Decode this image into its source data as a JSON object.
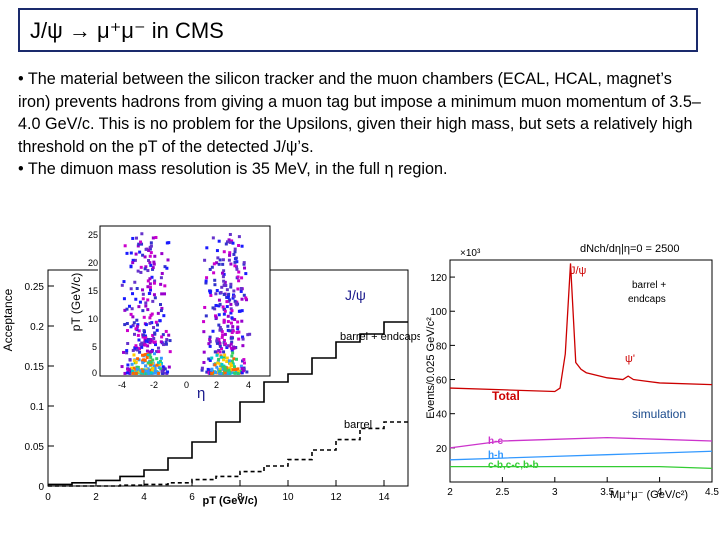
{
  "slide": {
    "title": "J/ψ → μ⁺μ⁻ in CMS",
    "bullets": [
      "• The material between the silicon tracker and the muon chambers (ECAL, HCAL, magnet’s iron) prevents hadrons from giving a muon tag but impose a minimum muon momentum of 3.5–4.0 GeV/c. This is no problem for the Upsilons, given their high mass, but sets a relatively high threshold on the pT of the detected J/ψ’s.",
      "• The dimuon mass resolution is 35 MeV, in the full η region."
    ]
  },
  "left_plot": {
    "ylabel": "Acceptance",
    "xlabel": "pT (GeV/c)",
    "annotation_jpsi": "J/ψ",
    "annotation_barrel_endcaps": "barrel + endcaps",
    "annotation_barrel": "barrel",
    "inset_ylabel": "pT (GeV/c)",
    "inset_xlabel": "η"
  },
  "right_plot": {
    "ylabel": "Events/0.025 GeV/c²",
    "xlabel": "Mμ⁺μ⁻ (GeV/c²)",
    "multiplier": "×10³",
    "header": "dNch/dη|η=0 = 2500",
    "label_jpsi": "J/ψ",
    "label_psiprime": "ψ'",
    "label_total": "Total",
    "label_hc": "h-c",
    "label_hh": "h-h",
    "label_cb": "c-b,c-c,b-b",
    "annotation_barrel_endcaps": "barrel + endcaps",
    "annotation_simulation": "simulation"
  },
  "chart_data": [
    {
      "type": "line",
      "title": "",
      "xlabel": "pT (GeV/c)",
      "ylabel": "Acceptance",
      "xlim": [
        0,
        15
      ],
      "ylim": [
        0,
        0.27
      ],
      "x_ticks": [
        0,
        2,
        4,
        6,
        8,
        10,
        12,
        14
      ],
      "y_ticks": [
        0,
        0.05,
        0.1,
        0.15,
        0.2,
        0.25
      ],
      "series": [
        {
          "name": "barrel + endcaps",
          "x": [
            0.5,
            1.5,
            2.5,
            3.5,
            4.5,
            5.5,
            6.5,
            7.5,
            8.5,
            9.5,
            10.5,
            11.5,
            12.5,
            13.5,
            14.5
          ],
          "values": [
            0.002,
            0.004,
            0.007,
            0.012,
            0.02,
            0.035,
            0.055,
            0.08,
            0.105,
            0.13,
            0.14,
            0.16,
            0.18,
            0.19,
            0.205
          ]
        },
        {
          "name": "barrel",
          "x": [
            0.5,
            1.5,
            2.5,
            3.5,
            4.5,
            5.5,
            6.5,
            7.5,
            8.5,
            9.5,
            10.5,
            11.5,
            12.5,
            13.5,
            14.5
          ],
          "values": [
            0.0,
            0.0,
            0.0,
            0.001,
            0.002,
            0.004,
            0.008,
            0.012,
            0.018,
            0.025,
            0.033,
            0.045,
            0.058,
            0.072,
            0.08
          ]
        }
      ]
    },
    {
      "type": "line",
      "title": "dNch/dη|η=0 = 2500",
      "xlabel": "Mμ⁺μ⁻ (GeV/c²)",
      "ylabel": "Events/0.025 GeV/c²",
      "xlim": [
        2,
        4.5
      ],
      "ylim": [
        0,
        130
      ],
      "x_ticks": [
        2,
        2.5,
        3,
        3.5,
        4,
        4.5
      ],
      "y_ticks": [
        20,
        40,
        60,
        80,
        100,
        120
      ],
      "series": [
        {
          "name": "Total",
          "x": [
            2.0,
            2.5,
            3.0,
            3.05,
            3.1,
            3.15,
            3.2,
            3.25,
            3.3,
            3.5,
            3.65,
            3.7,
            3.75,
            4.0,
            4.5
          ],
          "values": [
            55,
            54,
            53,
            55,
            75,
            128,
            70,
            66,
            64,
            61,
            60,
            62,
            60,
            58,
            57
          ]
        },
        {
          "name": "h-c",
          "x": [
            2.0,
            2.5,
            3.0,
            3.5,
            4.0,
            4.5
          ],
          "values": [
            20,
            24,
            25,
            26,
            25,
            24
          ]
        },
        {
          "name": "h-h",
          "x": [
            2.0,
            2.5,
            3.0,
            3.5,
            4.0,
            4.5
          ],
          "values": [
            13,
            14,
            15,
            16,
            17,
            18
          ]
        },
        {
          "name": "c-b,c-c,b-b",
          "x": [
            2.0,
            2.5,
            3.0,
            3.5,
            4.0,
            4.5
          ],
          "values": [
            9,
            9,
            9,
            9,
            9,
            8
          ]
        }
      ]
    }
  ]
}
